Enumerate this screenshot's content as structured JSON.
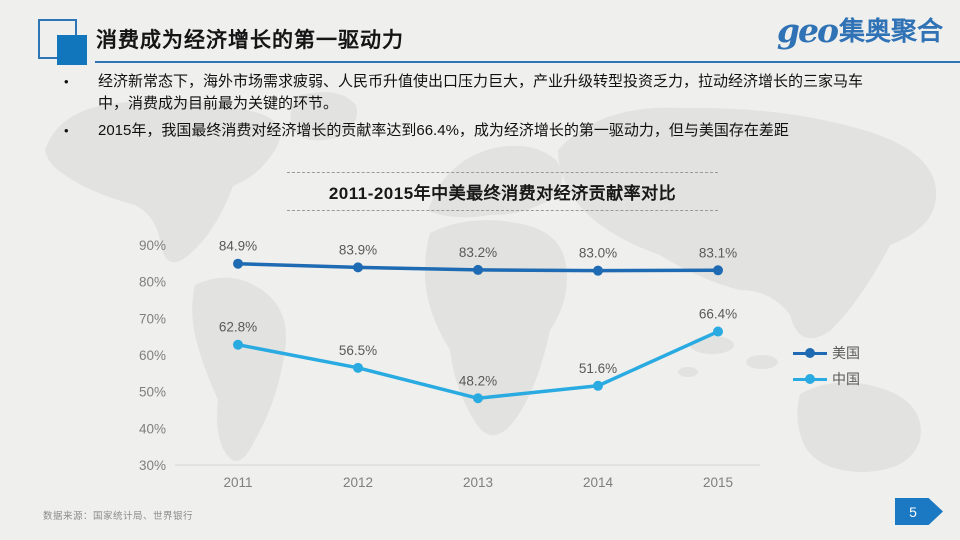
{
  "header": {
    "title": "消费成为经济增长的第一驱动力",
    "logo_en": "geo",
    "logo_cn": "集奥聚合",
    "accent_color": "#2e75b6"
  },
  "bullets": {
    "marker": "•",
    "items": [
      "经济新常态下，海外市场需求疲弱、人民币升值使出口压力巨大，产业升级转型投资乏力，拉动经济增长的三家马车中，消费成为目前最为关键的环节。",
      "2015年，我国最终消费对经济增长的贡献率达到66.4%，成为经济增长的第一驱动力，但与美国存在差距"
    ]
  },
  "chart_data": {
    "type": "line",
    "title": "2011-2015年中美最终消费对经济贡献率对比",
    "categories": [
      "2011",
      "2012",
      "2013",
      "2014",
      "2015"
    ],
    "series": [
      {
        "name": "美国",
        "values": [
          84.9,
          83.9,
          83.2,
          83.0,
          83.1
        ],
        "labels": [
          "84.9%",
          "83.9%",
          "83.2%",
          "83.0%",
          "83.1%"
        ],
        "color": "#1e6bb3"
      },
      {
        "name": "中国",
        "values": [
          62.8,
          56.5,
          48.2,
          51.6,
          66.4
        ],
        "labels": [
          "62.8%",
          "56.5%",
          "48.2%",
          "51.6%",
          "66.4%"
        ],
        "color": "#29abe2"
      }
    ],
    "xlabel": "",
    "ylabel": "",
    "ylim": [
      30,
      90
    ],
    "yticks": [
      "90%",
      "80%",
      "70%",
      "60%",
      "50%",
      "40%",
      "30%"
    ],
    "grid": false,
    "legend_position": "right",
    "label_color": "#595959",
    "tick_color": "#7f7f7f"
  },
  "footer": {
    "source": "数据来源：国家统计局、世界银行",
    "page_number": "5"
  }
}
